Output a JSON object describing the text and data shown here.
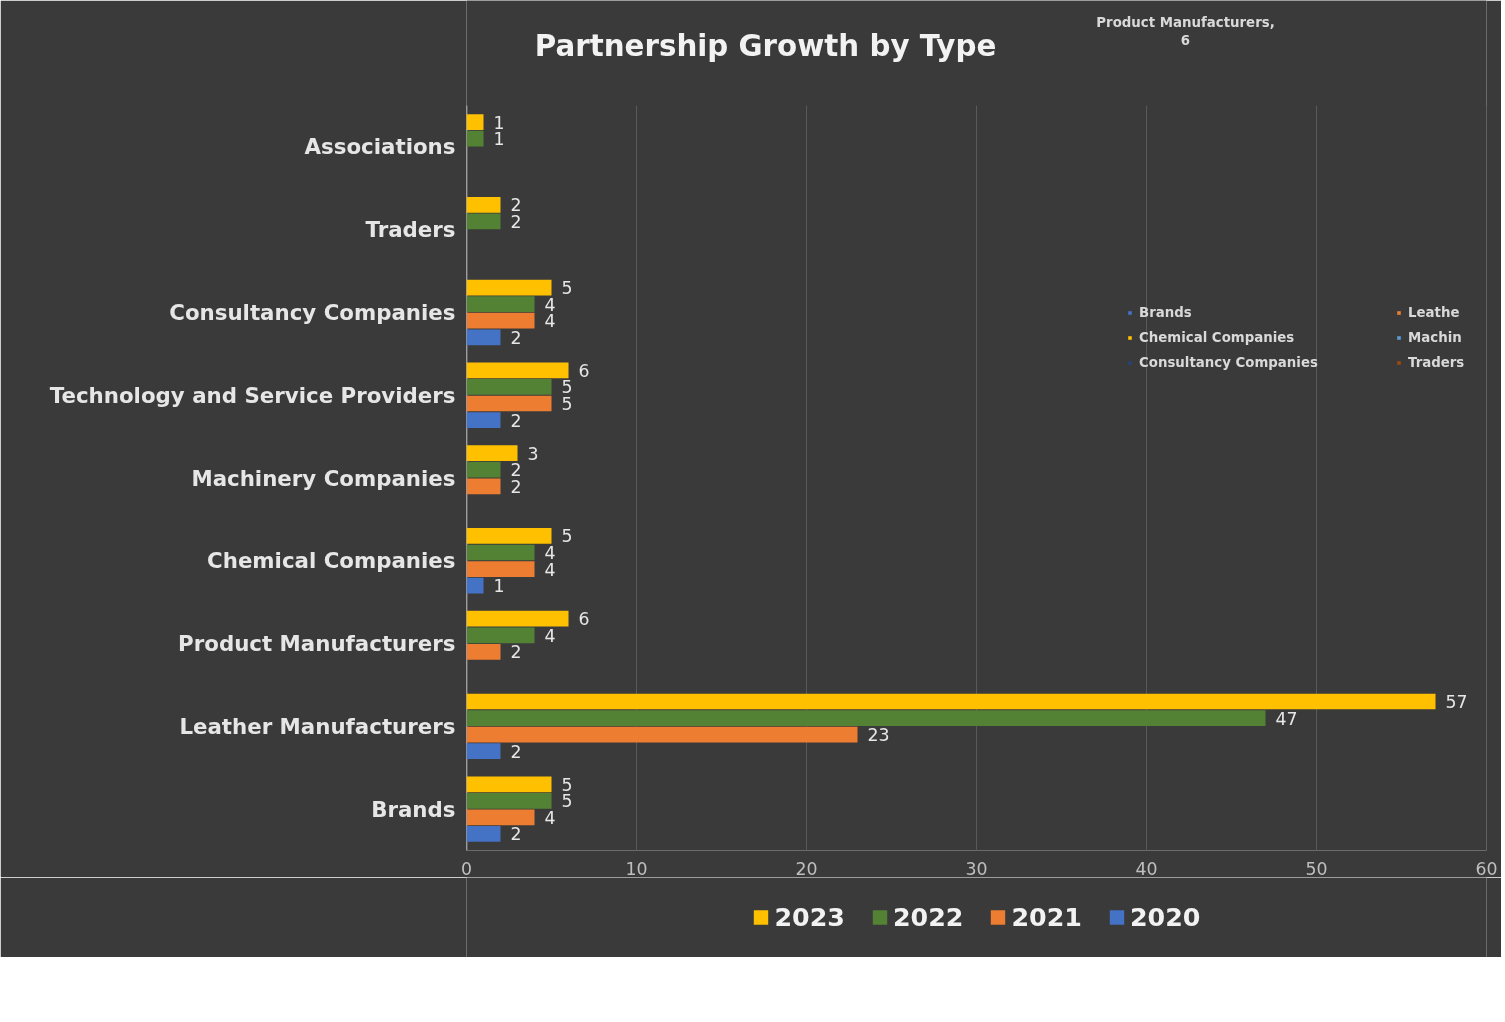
{
  "chart_data": [
    {
      "type": "bar",
      "orientation": "horizontal",
      "title": "Partnership Growth by Type",
      "categories": [
        "Associations",
        "Traders",
        "Consultancy Companies",
        "Technology and Service Providers",
        "Machinery Companies",
        "Chemical Companies",
        "Product Manufacturers",
        "Leather Manufacturers",
        "Brands"
      ],
      "series": [
        {
          "name": "2023",
          "color": "#ffc000",
          "values": [
            1,
            2,
            5,
            6,
            3,
            5,
            6,
            57,
            5
          ]
        },
        {
          "name": "2022",
          "color": "#548235",
          "values": [
            1,
            2,
            4,
            5,
            2,
            4,
            4,
            47,
            5
          ]
        },
        {
          "name": "2021",
          "color": "#ed7d31",
          "values": [
            null,
            null,
            4,
            5,
            2,
            4,
            2,
            23,
            4
          ]
        },
        {
          "name": "2020",
          "color": "#4472c4",
          "values": [
            null,
            null,
            2,
            2,
            null,
            1,
            null,
            2,
            2
          ]
        }
      ],
      "xlim": [
        0,
        60
      ],
      "xticks": [
        0,
        10,
        20,
        30,
        40,
        50,
        60
      ],
      "grid": "x",
      "legend": "bottom",
      "data_labels": true
    },
    {
      "type": "other",
      "annotations": [
        "Product Manufacturers,\n6"
      ],
      "categories": [
        "Brands",
        "Chemical Companies",
        "Consultancy Companies",
        "Leathe",
        "Machin",
        "Traders"
      ],
      "colors": [
        "#4472c4",
        "#ffc000",
        "#264478",
        "#ed7d31",
        "#5b9bd5",
        "#9e480e"
      ]
    }
  ]
}
